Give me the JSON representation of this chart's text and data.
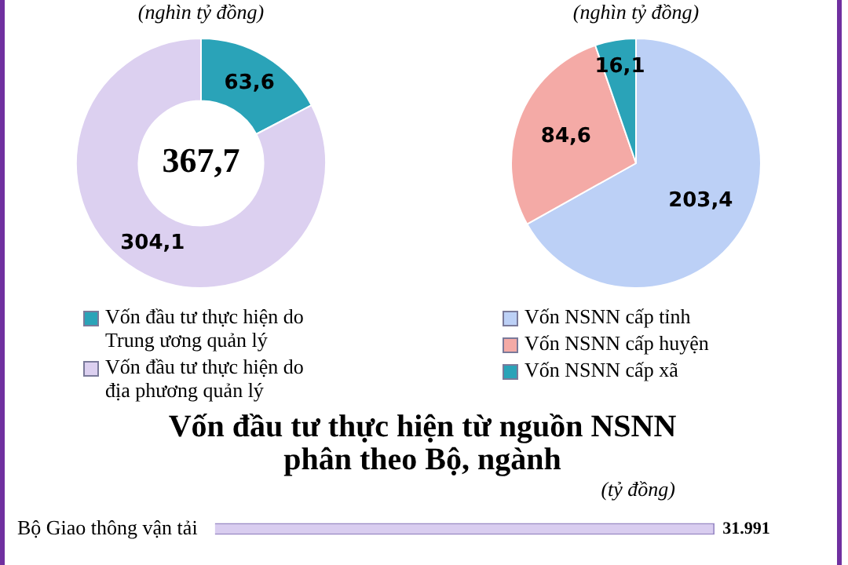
{
  "chart_data": [
    {
      "type": "donut",
      "subtitle": "(nghìn tỷ đồng)",
      "categories": [
        "Vốn đầu tư thực hiện do Trung ương quản lý",
        "Vốn đầu tư thực hiện do địa phương quản lý"
      ],
      "values": [
        63.6,
        304.1
      ],
      "colors": [
        "#2aa3b8",
        "#dcd0f0"
      ],
      "value_labels": [
        "63,6",
        "304,1"
      ],
      "annotations": [
        "367,7"
      ],
      "legend": "bottom"
    },
    {
      "type": "pie",
      "subtitle": "(nghìn tỷ đồng)",
      "categories": [
        "Vốn NSNN cấp tỉnh",
        "Vốn NSNN cấp huyện",
        "Vốn NSNN cấp xã"
      ],
      "values": [
        203.4,
        84.6,
        16.1
      ],
      "colors": [
        "#bcd0f6",
        "#f4aaa6",
        "#2aa3b8"
      ],
      "value_labels": [
        "203,4",
        "84,6",
        "16,1"
      ],
      "legend": "bottom"
    },
    {
      "type": "bar",
      "orientation": "horizontal",
      "title": "Vốn đầu tư thực hiện từ nguồn NSNN phân theo Bộ, ngành",
      "subtitle": "(tỷ đồng)",
      "categories": [
        "Bộ Giao thông vận tải"
      ],
      "values": [
        31991
      ],
      "color": "#d9cdf0",
      "value_labels": [
        "31.991"
      ]
    }
  ]
}
